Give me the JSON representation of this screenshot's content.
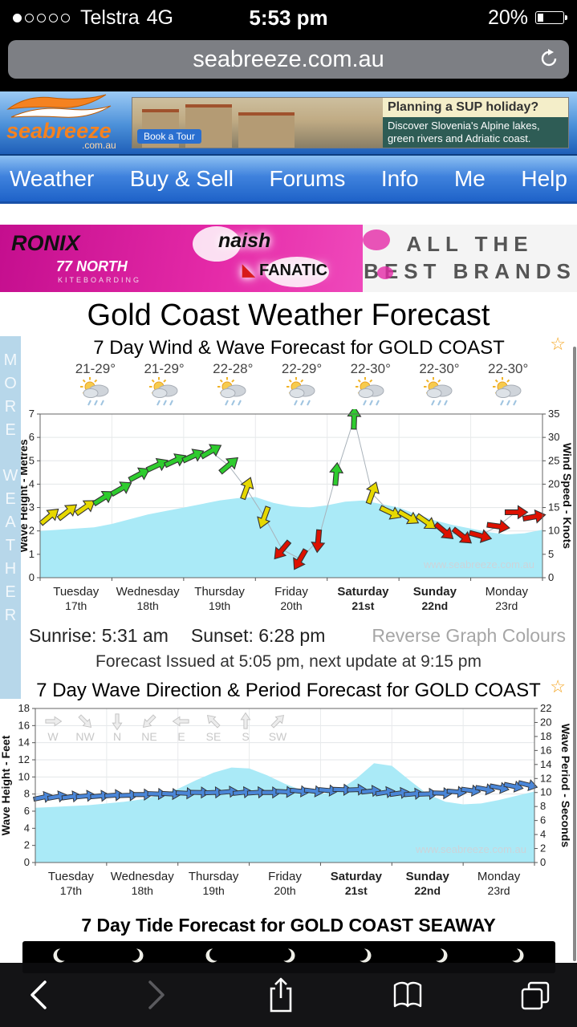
{
  "status_bar": {
    "carrier": "Telstra",
    "network": "4G",
    "time": "5:53 pm",
    "battery_pct": "20%",
    "signal_filled": 1,
    "signal_total": 5
  },
  "browser": {
    "url": "seabreeze.com.au"
  },
  "header": {
    "logo": {
      "name": "seabreeze",
      "tld": ".com.au"
    },
    "ad": {
      "headline": "Planning a SUP holiday?",
      "body": "Discover Slovenia's Alpine lakes, green rivers and Adriatic coast.",
      "cta": "Book a Tour"
    }
  },
  "nav": {
    "items": [
      "Weather",
      "Buy & Sell",
      "Forums",
      "Info",
      "Me",
      "Help"
    ]
  },
  "brands": {
    "ronix": "RONIX",
    "north": "77 NORTH",
    "north_sub": "KITEBOARDING",
    "naish": "naish",
    "fanatic": "FANATIC",
    "tagline": [
      "ALL THE",
      "BEST BRANDS"
    ]
  },
  "page": {
    "title": "Gold Coast Weather Forecast",
    "side_strip": "MORE WEATHER",
    "sunrise": "Sunrise: 5:31 am",
    "sunset": "Sunset: 6:28 pm",
    "reverse_link": "Reverse Graph Colours",
    "issued": "Forecast Issued at 5:05 pm, next update at 9:15 pm",
    "watermark": "www.seabreeze.com.au"
  },
  "colors": {
    "green": "#2ecc2e",
    "yellow": "#e6d800",
    "red": "#dd1100",
    "wave_fill": "#aaeaf7",
    "period_arrow": "#4a86d8",
    "star": "#f5a623"
  },
  "chart_data": [
    {
      "type": "area",
      "title": "7 Day Wind & Wave Forecast for GOLD COAST",
      "temps": [
        "21-29°",
        "21-29°",
        "22-28°",
        "22-29°",
        "22-30°",
        "22-30°",
        "22-30°"
      ],
      "days": [
        [
          "Tuesday",
          "17th"
        ],
        [
          "Wednesday",
          "18th"
        ],
        [
          "Thursday",
          "19th"
        ],
        [
          "Friday",
          "20th"
        ],
        [
          "Saturday",
          "21st"
        ],
        [
          "Sunday",
          "22nd"
        ],
        [
          "Monday",
          "23rd"
        ]
      ],
      "bold_days": [
        4,
        5
      ],
      "left_axis": {
        "label": "Wave Height - Metres",
        "min": 0,
        "max": 7,
        "step": 1
      },
      "right_axis": {
        "label": "Wind Speed - Knots",
        "min": 0,
        "max": 35,
        "step": 5
      },
      "wave_height_m": [
        2.0,
        2.05,
        2.1,
        2.15,
        2.3,
        2.5,
        2.7,
        2.85,
        3.0,
        3.15,
        3.3,
        3.4,
        3.45,
        3.2,
        3.05,
        3.0,
        3.1,
        3.25,
        3.3,
        3.15,
        3.0,
        2.7,
        2.45,
        2.25,
        2.1,
        1.95,
        1.85,
        1.9,
        2.05
      ],
      "wind_knots": [
        13,
        14,
        15,
        17,
        19,
        22,
        24,
        25,
        26,
        27,
        24,
        19,
        13,
        6,
        4,
        8,
        22,
        34,
        18,
        14,
        13,
        12,
        10,
        9,
        9,
        11,
        14,
        13
      ],
      "wind_colors": [
        "yellow",
        "yellow",
        "yellow",
        "green",
        "green",
        "green",
        "green",
        "green",
        "green",
        "green",
        "green",
        "yellow",
        "yellow",
        "red",
        "red",
        "red",
        "green",
        "green",
        "yellow",
        "yellow",
        "yellow",
        "yellow",
        "red",
        "red",
        "red",
        "red",
        "red",
        "red"
      ],
      "wind_dirs_deg": [
        -40,
        -38,
        -35,
        -32,
        -30,
        -28,
        -25,
        -25,
        -25,
        -30,
        -40,
        -70,
        110,
        130,
        120,
        95,
        -85,
        -88,
        -70,
        25,
        30,
        35,
        40,
        38,
        15,
        8,
        0,
        -10
      ]
    },
    {
      "type": "area",
      "title": "7 Day Wave Direction & Period Forecast for GOLD COAST",
      "direction_legend": [
        "W",
        "NW",
        "N",
        "NE",
        "E",
        "SE",
        "S",
        "SW"
      ],
      "days": [
        [
          "Tuesday",
          "17th"
        ],
        [
          "Wednesday",
          "18th"
        ],
        [
          "Thursday",
          "19th"
        ],
        [
          "Friday",
          "20th"
        ],
        [
          "Saturday",
          "21st"
        ],
        [
          "Sunday",
          "22nd"
        ],
        [
          "Monday",
          "23rd"
        ]
      ],
      "bold_days": [
        4,
        5
      ],
      "left_axis": {
        "label": "Wave Height - Feet",
        "min": 0,
        "max": 18,
        "step": 2
      },
      "right_axis": {
        "label": "Wave Period - Seconds",
        "min": 0,
        "max": 22,
        "step": 2
      },
      "wave_height_ft": [
        6.4,
        6.5,
        6.6,
        6.7,
        6.9,
        7.1,
        7.4,
        7.9,
        8.6,
        9.6,
        10.5,
        11.1,
        11.0,
        10.2,
        9.2,
        8.4,
        8.0,
        8.4,
        9.8,
        11.6,
        11.3,
        9.6,
        8.0,
        7.1,
        6.8,
        6.9,
        7.3,
        7.8,
        8.3
      ],
      "period_s": [
        9.3,
        9.4,
        9.4,
        9.5,
        9.5,
        9.6,
        9.6,
        9.7,
        9.8,
        9.8,
        9.9,
        10,
        10,
        10.1,
        10,
        10,
        10,
        10.1,
        10.2,
        10.2,
        10.3,
        10.4,
        10.4,
        10.2,
        10,
        9.9,
        9.8,
        9.8,
        9.9,
        10.1,
        10.3,
        10.5,
        10.7,
        10.9,
        11.1
      ],
      "period_dirs_deg": [
        -12,
        -10,
        -8,
        -6,
        -5,
        -4,
        -2,
        0,
        2,
        3,
        3,
        1,
        -2,
        -5,
        -6,
        -4,
        0,
        3,
        6,
        7,
        5,
        2,
        -2,
        -6,
        -9,
        -8,
        -5,
        -2,
        2,
        5,
        8,
        10,
        11,
        12,
        14
      ]
    },
    {
      "type": "tide",
      "title": "7 Day Tide Forecast for GOLD COAST SEAWAY",
      "moon_phases": [
        "right",
        "left",
        "right",
        "left",
        "left",
        "left",
        "left"
      ]
    }
  ]
}
